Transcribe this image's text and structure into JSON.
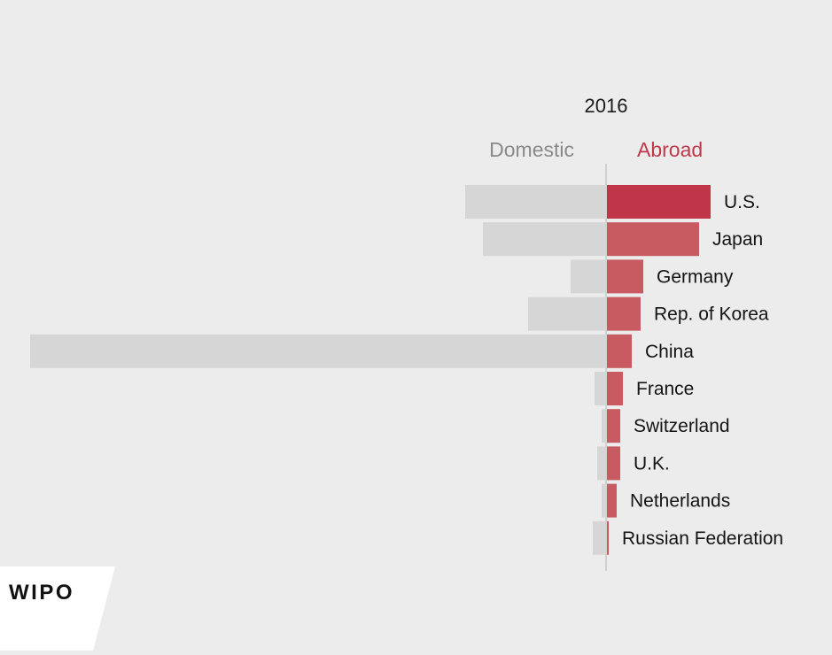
{
  "chart_data": {
    "type": "bar",
    "orientation": "horizontal-diverging",
    "title": "2016",
    "series": [
      {
        "name": "Domestic",
        "color": "#d6d6d6",
        "label_color": "#8a8a8a",
        "values": [
          159,
          139,
          40,
          88,
          650,
          13,
          5,
          10,
          5,
          15
        ]
      },
      {
        "name": "Abroad",
        "color": "#c85a62",
        "label_color": "#c0394a",
        "values": [
          117,
          104,
          41,
          38,
          28,
          18,
          15,
          15,
          11,
          2
        ]
      }
    ],
    "categories": [
      "U.S.",
      "Japan",
      "Germany",
      "Rep. of Korea",
      "China",
      "France",
      "Switzerland",
      "U.K.",
      "Netherlands",
      "Russian Federation"
    ],
    "highlight_color": "#c13549",
    "xlim": [
      -650,
      120
    ]
  },
  "branding": {
    "logo_text": "WIPO"
  }
}
